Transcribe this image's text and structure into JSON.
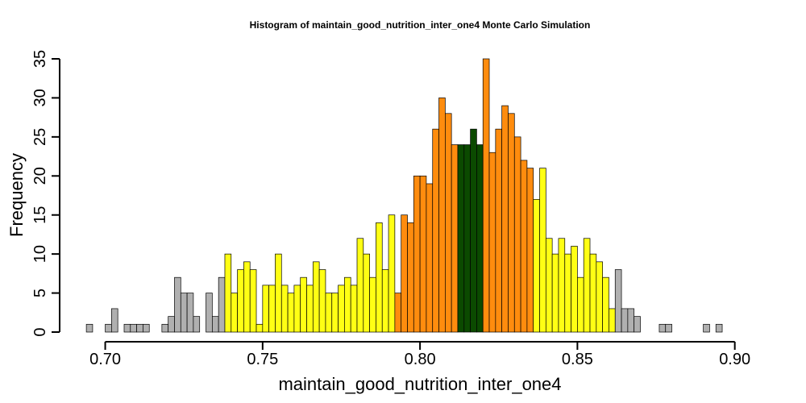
{
  "chart_data": {
    "type": "bar",
    "title": "Histogram of  maintain_good_nutrition_inter_one4  Monte Carlo Simulation",
    "xlabel": "maintain_good_nutrition_inter_one4",
    "ylabel": "Frequency",
    "xlim": [
      0.6932,
      0.907
    ],
    "ylim": [
      0,
      35
    ],
    "bin_start": 0.694,
    "bin_width": 0.002,
    "x_ticks": [
      {
        "value": 0.7,
        "label": "0.70"
      },
      {
        "value": 0.75,
        "label": "0.75"
      },
      {
        "value": 0.8,
        "label": "0.80"
      },
      {
        "value": 0.85,
        "label": "0.85"
      },
      {
        "value": 0.9,
        "label": "0.90"
      }
    ],
    "y_ticks": [
      {
        "value": 0,
        "label": "0"
      },
      {
        "value": 5,
        "label": "5"
      },
      {
        "value": 10,
        "label": "10"
      },
      {
        "value": 15,
        "label": "15"
      },
      {
        "value": 20,
        "label": "20"
      },
      {
        "value": 25,
        "label": "25"
      },
      {
        "value": 30,
        "label": "30"
      },
      {
        "value": 35,
        "label": "35"
      }
    ],
    "counts": [
      1,
      0,
      0,
      1,
      3,
      0,
      1,
      1,
      1,
      1,
      0,
      0,
      1,
      2,
      7,
      5,
      5,
      2,
      0,
      5,
      2,
      7,
      10,
      5,
      8,
      9,
      8,
      1,
      6,
      6,
      10,
      6,
      5,
      6,
      7,
      6,
      9,
      8,
      5,
      5,
      6,
      7,
      6,
      12,
      10,
      7,
      14,
      8,
      15,
      5,
      15,
      14,
      20,
      20,
      19,
      26,
      30,
      28,
      24,
      24,
      24,
      26,
      24,
      35,
      23,
      26,
      29,
      28,
      25,
      22,
      21,
      17,
      21,
      12,
      10,
      12,
      10,
      11,
      7,
      12,
      10,
      9,
      7,
      3,
      8,
      3,
      3,
      2,
      0,
      0,
      0,
      1,
      1,
      0,
      0,
      0,
      0,
      0,
      1,
      0,
      1
    ],
    "bin_colors": {
      "tail": "#b0b0b0",
      "outer": "#ffff14",
      "inner": "#ff8c0e",
      "center": "#0b4a00"
    },
    "color_ranges": {
      "outer": [
        0.738,
        0.862
      ],
      "inner": [
        0.792,
        0.836
      ],
      "center": [
        0.812,
        0.82
      ]
    }
  }
}
